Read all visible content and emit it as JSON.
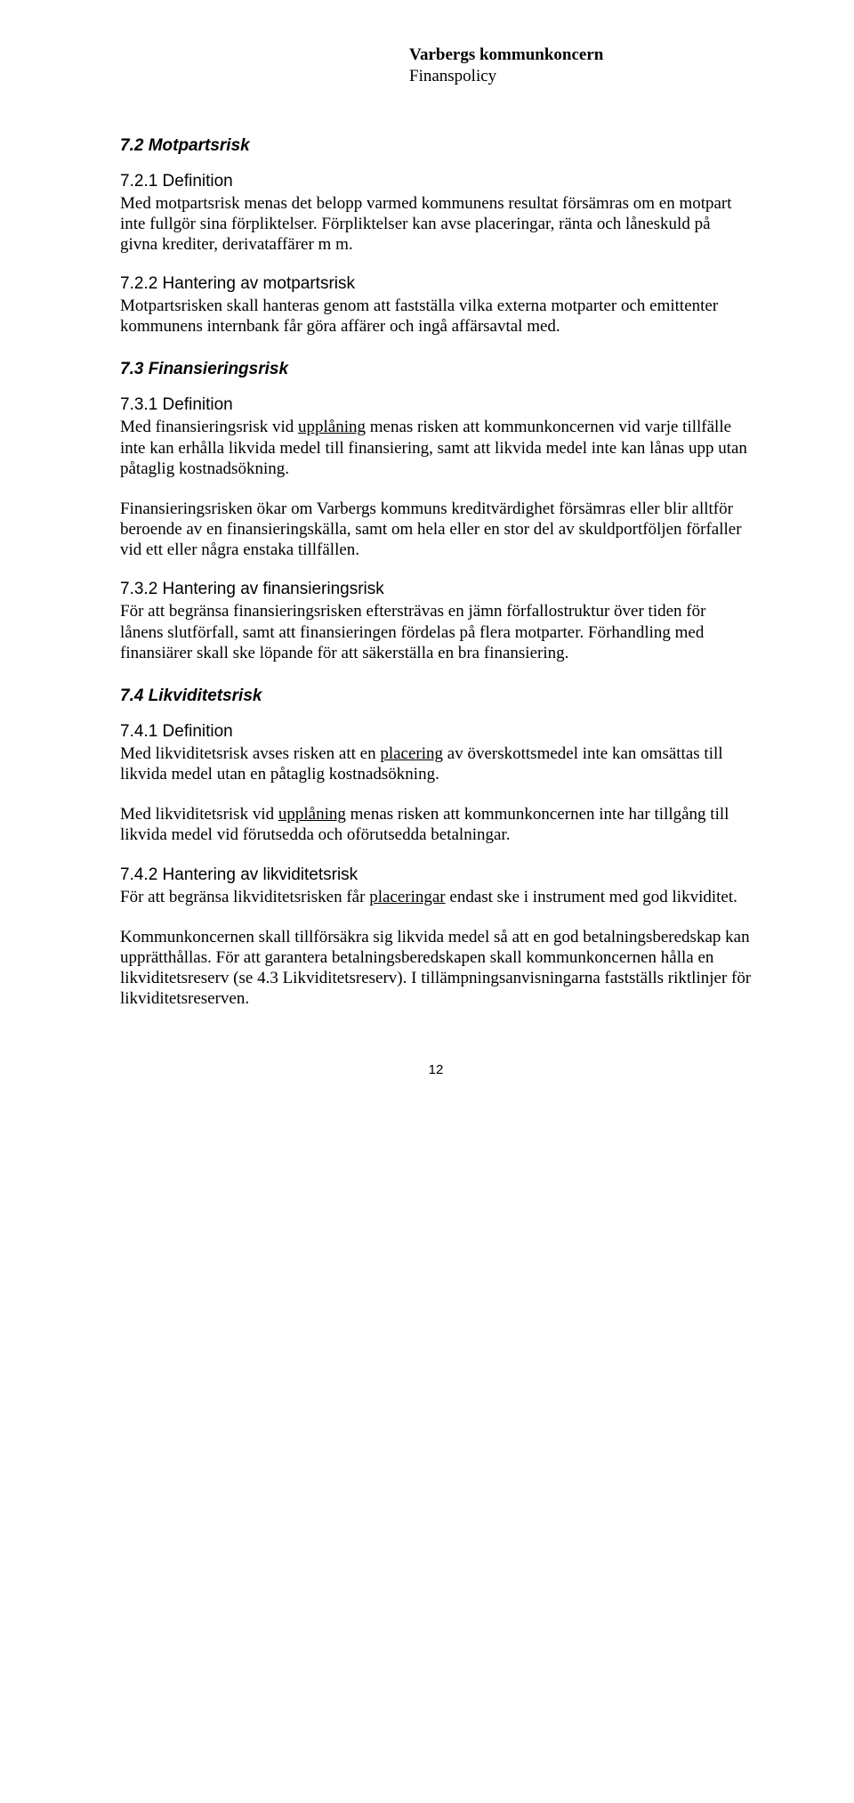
{
  "header": {
    "org": "Varbergs kommunkoncern",
    "doc": "Finanspolicy"
  },
  "sections": {
    "s72": {
      "title": "7.2   Motpartsrisk",
      "s721_title": "7.2.1  Definition",
      "s721_p": "Med motpartsrisk menas det belopp varmed kommunens resultat försämras om en motpart inte fullgör sina förpliktelser. Förpliktelser kan avse placeringar, ränta och låneskuld på givna krediter, derivataffärer m m.",
      "s722_title": "7.2.2  Hantering av motpartsrisk",
      "s722_p": "Motpartsrisken skall hanteras genom att fastställa vilka externa motparter och emittenter kommunens internbank får göra affärer och ingå affärsavtal med."
    },
    "s73": {
      "title": "7.3   Finansieringsrisk",
      "s731_title": "7.3.1  Definition",
      "s731_p1a": "Med finansieringsrisk vid ",
      "s731_p1_u": "upplåning",
      "s731_p1b": " menas risken att kommunkoncernen vid varje tillfälle inte kan erhålla likvida medel till finansiering, samt att likvida medel inte kan lånas upp utan påtaglig kostnadsökning.",
      "s731_p2": "Finansieringsrisken ökar om Varbergs kommuns kreditvärdighet försämras eller blir alltför beroende av en finansieringskälla, samt om hela eller en stor del av skuldportföljen förfaller vid ett eller några enstaka tillfällen.",
      "s732_title": "7.3.2  Hantering av finansieringsrisk",
      "s732_p": "För att begränsa finansieringsrisken eftersträvas en jämn förfallostruktur över tiden för lånens slutförfall, samt att finansieringen fördelas på flera motparter. Förhandling med finansiärer skall ske löpande för att säkerställa en bra finansiering."
    },
    "s74": {
      "title": "7.4   Likviditetsrisk",
      "s741_title": "7.4.1  Definition",
      "s741_p1a": "Med likviditetsrisk avses risken att en ",
      "s741_p1_u": "placering",
      "s741_p1b": " av överskottsmedel inte kan omsättas till likvida medel utan en påtaglig kostnadsökning.",
      "s741_p2a": "Med likviditetsrisk vid ",
      "s741_p2_u": "upplåning",
      "s741_p2b": " menas risken att kommunkoncernen inte har tillgång till likvida medel vid förutsedda och oförutsedda betalningar.",
      "s742_title": "7.4.2  Hantering av likviditetsrisk",
      "s742_p1a": "För att begränsa likviditetsrisken får ",
      "s742_p1_u": "placeringar",
      "s742_p1b": " endast ske i instrument med god likviditet.",
      "s742_p2": "Kommunkoncernen skall tillförsäkra sig likvida medel så att en god betalningsberedskap kan upprätthållas. För att garantera betalningsberedskapen skall kommunkoncernen hålla en likviditetsreserv (se 4.3 Likviditetsreserv). I tillämpningsanvisningarna fastställs riktlinjer för likviditetsreserven."
    }
  },
  "page_number": "12"
}
